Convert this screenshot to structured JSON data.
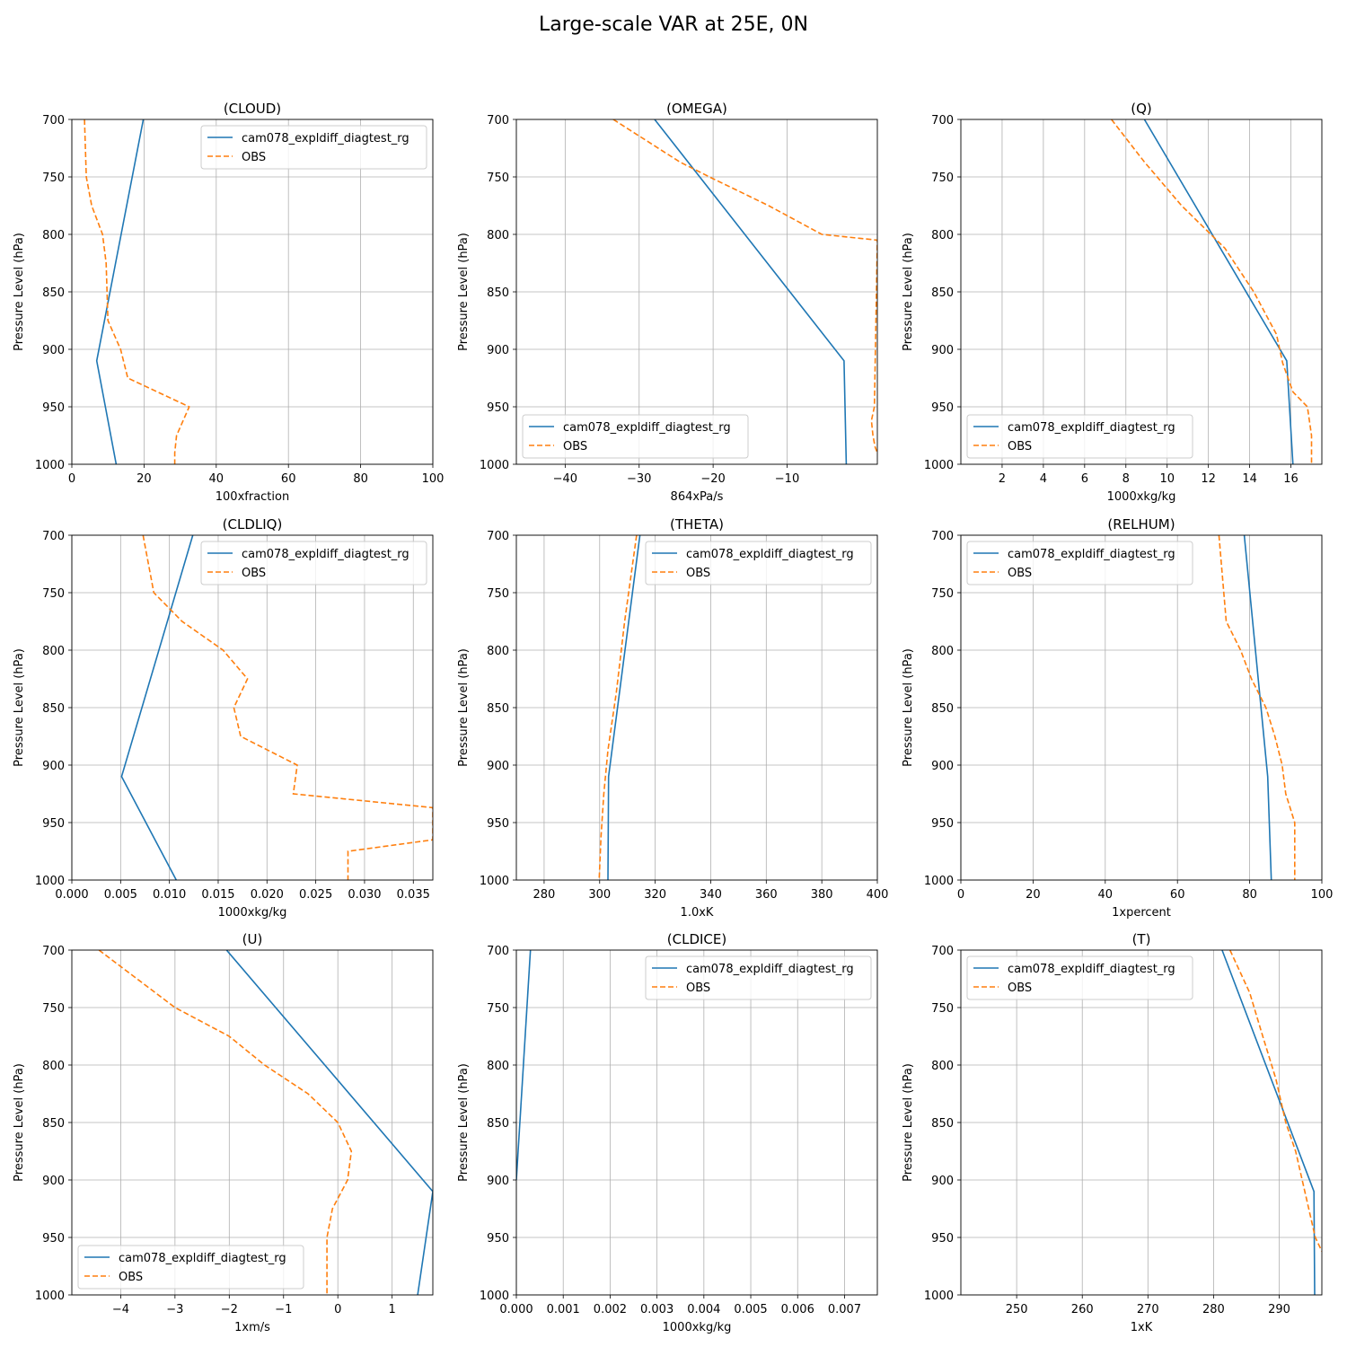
{
  "figure": {
    "title": "Large-scale VAR at 25E, 0N"
  },
  "colors": {
    "model": "#1f77b4",
    "obs": "#ff7f0e",
    "grid": "#b0b0b0"
  },
  "chart_data": [
    {
      "type": "line",
      "title": "(CLOUD)",
      "xlabel": "100xfraction",
      "ylabel": "Pressure Level (hPa)",
      "xlim": [
        0,
        100
      ],
      "ylim": [
        1000,
        700
      ],
      "xticks": [
        0,
        20,
        40,
        60,
        80,
        100
      ],
      "xtick_labels": [
        "0",
        "20",
        "40",
        "60",
        "80",
        "100"
      ],
      "yticks": [
        700,
        750,
        800,
        850,
        900,
        950,
        1000
      ],
      "ytick_labels": [
        "700",
        "750",
        "800",
        "850",
        "900",
        "950",
        "1000"
      ],
      "legend_loc": "upper right",
      "series": [
        {
          "name": "cam078_expldiff_diagtest_rg",
          "style": "solid",
          "x": [
            19.8,
            6.9,
            12.3
          ],
          "y": [
            700,
            910,
            1000
          ]
        },
        {
          "name": "OBS",
          "style": "dashed",
          "x": [
            3.5,
            4,
            5.5,
            8.5,
            9.5,
            10,
            13.5,
            15.5,
            32.5,
            29,
            28.5,
            28.5
          ],
          "y": [
            700,
            750,
            775,
            800,
            825,
            875,
            900,
            925,
            950,
            975,
            990,
            1000
          ]
        }
      ]
    },
    {
      "type": "line",
      "title": "(OMEGA)",
      "xlabel": "864xPa/s",
      "ylabel": "Pressure Level (hPa)",
      "xlim": [
        -46.6,
        2.2
      ],
      "ylim": [
        1000,
        700
      ],
      "xticks": [
        -40,
        -30,
        -20,
        -10
      ],
      "xtick_labels": [
        "−40",
        "−30",
        "−20",
        "−10"
      ],
      "yticks": [
        700,
        750,
        800,
        850,
        900,
        950,
        1000
      ],
      "ytick_labels": [
        "700",
        "750",
        "800",
        "850",
        "900",
        "950",
        "1000"
      ],
      "legend_loc": "lower left",
      "series": [
        {
          "name": "cam078_expldiff_diagtest_rg",
          "style": "solid",
          "x": [
            -27.9,
            -2.3,
            -2.0
          ],
          "y": [
            700,
            910,
            1000
          ]
        },
        {
          "name": "OBS",
          "style": "dashed",
          "x": [
            -33.5,
            -24.5,
            -20.5,
            -12.5,
            -5.3,
            2.2,
            1.8,
            1.4,
            1.6,
            1.9,
            2.2
          ],
          "y": [
            700,
            737,
            750,
            775,
            800,
            805,
            950,
            962,
            975,
            985,
            990
          ]
        }
      ]
    },
    {
      "type": "line",
      "title": "(Q)",
      "xlabel": "1000xkg/kg",
      "ylabel": "Pressure Level (hPa)",
      "xlim": [
        0,
        17.5
      ],
      "ylim": [
        1000,
        700
      ],
      "xticks": [
        2,
        4,
        6,
        8,
        10,
        12,
        14,
        16
      ],
      "xtick_labels": [
        "2",
        "4",
        "6",
        "8",
        "10",
        "12",
        "14",
        "16"
      ],
      "yticks": [
        700,
        750,
        800,
        850,
        900,
        950,
        1000
      ],
      "ytick_labels": [
        "700",
        "750",
        "800",
        "850",
        "900",
        "950",
        "1000"
      ],
      "legend_loc": "lower left",
      "series": [
        {
          "name": "cam078_expldiff_diagtest_rg",
          "style": "solid",
          "x": [
            8.9,
            15.8,
            16.1
          ],
          "y": [
            700,
            910,
            1000
          ]
        },
        {
          "name": "OBS",
          "style": "dashed",
          "x": [
            7.3,
            8.9,
            10.7,
            12.8,
            14.2,
            15.3,
            15.6,
            16.1,
            16.8,
            17.0,
            17.0
          ],
          "y": [
            700,
            737,
            775,
            812,
            850,
            887,
            912,
            937,
            950,
            975,
            1000
          ]
        }
      ]
    },
    {
      "type": "line",
      "title": "(CLDLIQ)",
      "xlabel": "1000xkg/kg",
      "ylabel": "Pressure Level (hPa)",
      "xlim": [
        0,
        0.037
      ],
      "ylim": [
        1000,
        700
      ],
      "xticks": [
        0,
        0.005,
        0.01,
        0.015,
        0.02,
        0.025,
        0.03,
        0.035
      ],
      "xtick_labels": [
        "0.000",
        "0.005",
        "0.010",
        "0.015",
        "0.020",
        "0.025",
        "0.030",
        "0.035"
      ],
      "yticks": [
        700,
        750,
        800,
        850,
        900,
        950,
        1000
      ],
      "ytick_labels": [
        "700",
        "750",
        "800",
        "850",
        "900",
        "950",
        "1000"
      ],
      "legend_loc": "upper right",
      "series": [
        {
          "name": "cam078_expldiff_diagtest_rg",
          "style": "solid",
          "x": [
            0.0124,
            0.0051,
            0.0107
          ],
          "y": [
            700,
            910,
            1000
          ]
        },
        {
          "name": "OBS",
          "style": "dashed",
          "x": [
            0.0073,
            0.0084,
            0.0113,
            0.0155,
            0.018,
            0.0166,
            0.0173,
            0.0231,
            0.0227,
            0.037,
            0.037,
            0.0283,
            0.0283
          ],
          "y": [
            700,
            750,
            775,
            800,
            825,
            850,
            875,
            900,
            925,
            937,
            965,
            975,
            1000
          ]
        }
      ]
    },
    {
      "type": "line",
      "title": "(THETA)",
      "xlabel": "1.0xK",
      "ylabel": "Pressure Level (hPa)",
      "xlim": [
        270,
        400
      ],
      "ylim": [
        1000,
        700
      ],
      "xticks": [
        280,
        300,
        320,
        340,
        360,
        380,
        400
      ],
      "xtick_labels": [
        "280",
        "300",
        "320",
        "340",
        "360",
        "380",
        "400"
      ],
      "yticks": [
        700,
        750,
        800,
        850,
        900,
        950,
        1000
      ],
      "ytick_labels": [
        "700",
        "750",
        "800",
        "850",
        "900",
        "950",
        "1000"
      ],
      "legend_loc": "upper right",
      "series": [
        {
          "name": "cam078_expldiff_diagtest_rg",
          "style": "solid",
          "x": [
            314.5,
            303.2,
            303.0
          ],
          "y": [
            700,
            910,
            1000
          ]
        },
        {
          "name": "OBS",
          "style": "dashed",
          "x": [
            313.3,
            309.0,
            306.0,
            303.0,
            301.5,
            300.5,
            299.8
          ],
          "y": [
            700,
            775,
            837,
            887,
            925,
            962,
            1000
          ]
        }
      ]
    },
    {
      "type": "line",
      "title": "(RELHUM)",
      "xlabel": "1xpercent",
      "ylabel": "Pressure Level (hPa)",
      "xlim": [
        0,
        100
      ],
      "ylim": [
        1000,
        700
      ],
      "xticks": [
        0,
        20,
        40,
        60,
        80,
        100
      ],
      "xtick_labels": [
        "0",
        "20",
        "40",
        "60",
        "80",
        "100"
      ],
      "yticks": [
        700,
        750,
        800,
        850,
        900,
        950,
        1000
      ],
      "ytick_labels": [
        "700",
        "750",
        "800",
        "850",
        "900",
        "950",
        "1000"
      ],
      "legend_loc": "upper left",
      "series": [
        {
          "name": "cam078_expldiff_diagtest_rg",
          "style": "solid",
          "x": [
            78.5,
            85.0,
            86.0
          ],
          "y": [
            700,
            910,
            1000
          ]
        },
        {
          "name": "OBS",
          "style": "dashed",
          "x": [
            71.5,
            73.5,
            77.5,
            80.5,
            84.5,
            87.0,
            89.0,
            90.0,
            92.5,
            92.5,
            92.5
          ],
          "y": [
            700,
            775,
            800,
            825,
            850,
            875,
            900,
            925,
            950,
            975,
            1000
          ]
        }
      ]
    },
    {
      "type": "line",
      "title": "(U)",
      "xlabel": "1xm/s",
      "ylabel": "Pressure Level (hPa)",
      "xlim": [
        -4.9,
        1.75
      ],
      "ylim": [
        1000,
        700
      ],
      "xticks": [
        -4,
        -3,
        -2,
        -1,
        0,
        1
      ],
      "xtick_labels": [
        "−4",
        "−3",
        "−2",
        "−1",
        "0",
        "1"
      ],
      "yticks": [
        700,
        750,
        800,
        850,
        900,
        950,
        1000
      ],
      "ytick_labels": [
        "700",
        "750",
        "800",
        "850",
        "900",
        "950",
        "1000"
      ],
      "legend_loc": "lower left",
      "series": [
        {
          "name": "cam078_expldiff_diagtest_rg",
          "style": "solid",
          "x": [
            -2.05,
            1.75,
            1.47
          ],
          "y": [
            700,
            910,
            1000
          ]
        },
        {
          "name": "OBS",
          "style": "dashed",
          "x": [
            -4.4,
            -3.0,
            -2.0,
            -1.35,
            -0.55,
            0.0,
            0.25,
            0.18,
            -0.1,
            -0.2,
            -0.2,
            -0.2
          ],
          "y": [
            700,
            750,
            775,
            800,
            825,
            850,
            875,
            900,
            925,
            950,
            975,
            1000
          ]
        }
      ]
    },
    {
      "type": "line",
      "title": "(CLDICE)",
      "xlabel": "1000xkg/kg",
      "ylabel": "Pressure Level (hPa)",
      "xlim": [
        0,
        0.0077
      ],
      "ylim": [
        1000,
        700
      ],
      "xticks": [
        0,
        0.001,
        0.002,
        0.003,
        0.004,
        0.005,
        0.006,
        0.007
      ],
      "xtick_labels": [
        "0.000",
        "0.001",
        "0.002",
        "0.003",
        "0.004",
        "0.005",
        "0.006",
        "0.007"
      ],
      "yticks": [
        700,
        750,
        800,
        850,
        900,
        950,
        1000
      ],
      "ytick_labels": [
        "700",
        "750",
        "800",
        "850",
        "900",
        "950",
        "1000"
      ],
      "legend_loc": "upper right",
      "series": [
        {
          "name": "cam078_expldiff_diagtest_rg",
          "style": "solid",
          "x": [
            0.0003,
            0.0
          ],
          "y": [
            700,
            900
          ]
        },
        {
          "name": "OBS",
          "style": "dashed",
          "x": [],
          "y": []
        }
      ]
    },
    {
      "type": "line",
      "title": "(T)",
      "xlabel": "1xK",
      "ylabel": "Pressure Level (hPa)",
      "xlim": [
        241.5,
        296.5
      ],
      "ylim": [
        1000,
        700
      ],
      "xticks": [
        250,
        260,
        270,
        280,
        290
      ],
      "xtick_labels": [
        "250",
        "260",
        "270",
        "280",
        "290"
      ],
      "yticks": [
        700,
        750,
        800,
        850,
        900,
        950,
        1000
      ],
      "ytick_labels": [
        "700",
        "750",
        "800",
        "850",
        "900",
        "950",
        "1000"
      ],
      "legend_loc": "upper left",
      "series": [
        {
          "name": "cam078_expldiff_diagtest_rg",
          "style": "solid",
          "x": [
            281.3,
            295.3,
            295.4
          ],
          "y": [
            700,
            910,
            1000
          ]
        },
        {
          "name": "OBS",
          "style": "dashed",
          "x": [
            282.5,
            285.5,
            287.5,
            289.5,
            291.0,
            292.5,
            293.5,
            294.5,
            295.5,
            296.5
          ],
          "y": [
            700,
            737,
            775,
            812,
            850,
            875,
            900,
            925,
            950,
            962
          ]
        }
      ]
    }
  ]
}
